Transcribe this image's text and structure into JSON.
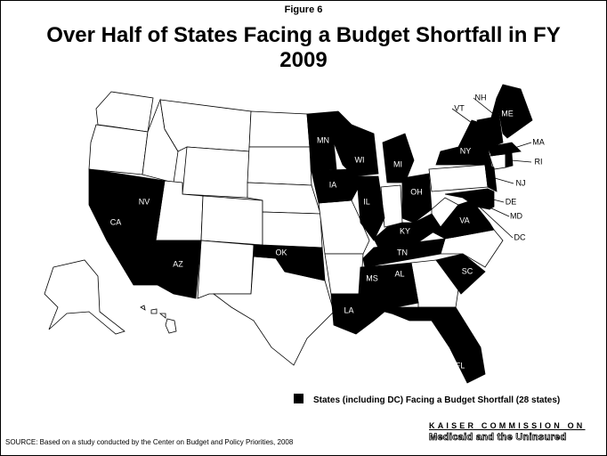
{
  "figure_label": "Figure 6",
  "title": "Over Half of States Facing a Budget Shortfall in FY 2009",
  "shortfall_color": "#000000",
  "other_color": "#ffffff",
  "states": [
    {
      "label": "CA"
    },
    {
      "label": "NV"
    },
    {
      "label": "AZ"
    },
    {
      "label": "OK"
    },
    {
      "label": "MN"
    },
    {
      "label": "WI"
    },
    {
      "label": "IA"
    },
    {
      "label": "IL"
    },
    {
      "label": "MI"
    },
    {
      "label": "OH"
    },
    {
      "label": "KY"
    },
    {
      "label": "TN"
    },
    {
      "label": "MS"
    },
    {
      "label": "AL"
    },
    {
      "label": "LA"
    },
    {
      "label": "FL"
    },
    {
      "label": "SC"
    },
    {
      "label": "VA"
    },
    {
      "label": "MD"
    },
    {
      "label": "DE"
    },
    {
      "label": "DC"
    },
    {
      "label": "NJ"
    },
    {
      "label": "NY"
    },
    {
      "label": "VT"
    },
    {
      "label": "NH"
    },
    {
      "label": "ME"
    },
    {
      "label": "MA"
    },
    {
      "label": "RI"
    }
  ],
  "legend": {
    "label": "States (including DC) Facing a Budget Shortfall (28 states)"
  },
  "source": "SOURCE:  Based on a study conducted by the Center on Budget and Policy Priorities, 2008",
  "logo": {
    "line1": "KAISER COMMISSION ON",
    "line2": "Medicaid and the Uninsured"
  }
}
